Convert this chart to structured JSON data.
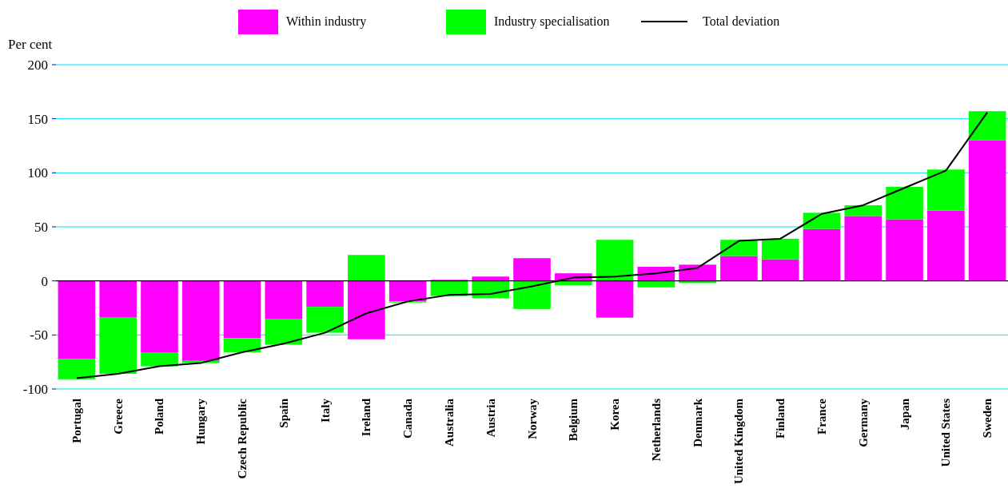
{
  "chart_data": {
    "type": "bar",
    "stacked": true,
    "ylabel": "Per cent",
    "categories": [
      "Portugal",
      "Greece",
      "Poland",
      "Hungary",
      "Czech Republic",
      "Spain",
      "Italy",
      "Ireland",
      "Canada",
      "Australia",
      "Austria",
      "Norway",
      "Belgium",
      "Korea",
      "Netherlands",
      "Denmark",
      "United Kingdom",
      "Finland",
      "France",
      "Germany",
      "Japan",
      "United States",
      "Sweden"
    ],
    "series": [
      {
        "name": "Within industry",
        "color": "#ff00ff",
        "values": [
          -72,
          -34,
          -66,
          -74,
          -53,
          -35,
          -24,
          -54,
          -19,
          1,
          4,
          21,
          7,
          -34,
          13,
          15,
          23,
          20,
          48,
          60,
          57,
          65,
          130
        ]
      },
      {
        "name": "Industry specialisation",
        "color": "#00ff00",
        "values": [
          -19,
          -52,
          -13,
          -2,
          -13,
          -24,
          -24,
          24,
          -1,
          -14,
          -16,
          -26,
          -4,
          38,
          -6,
          -2,
          15,
          19,
          15,
          10,
          30,
          38,
          27
        ]
      },
      {
        "name": "Total deviation",
        "type": "line",
        "color": "#000000",
        "values": [
          -90,
          -86,
          -79,
          -76,
          -66,
          -58,
          -48,
          -30,
          -19,
          -13,
          -12,
          -5,
          3,
          4,
          7,
          12,
          37,
          39,
          62,
          70,
          86,
          102,
          156
        ]
      }
    ],
    "ylim": [
      -100,
      200
    ],
    "yticks": [
      -100,
      -50,
      0,
      50,
      100,
      150,
      200
    ],
    "grid": "y",
    "legend": "top"
  }
}
